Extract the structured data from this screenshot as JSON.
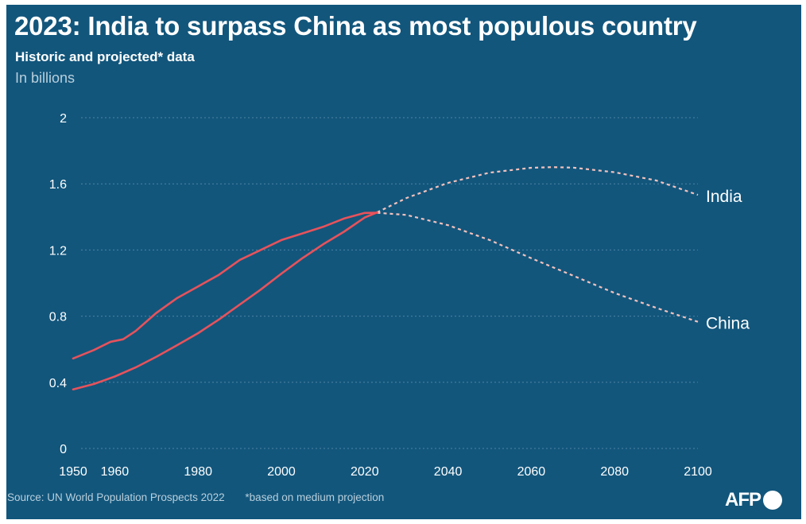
{
  "header": {
    "title": "2023: India to surpass China as most populous country",
    "subtitle": "Historic and projected* data",
    "unit": "In billions"
  },
  "footer": {
    "source": "Source: UN World Population Prospects 2022",
    "note": "*based on medium projection",
    "logo": "AFP"
  },
  "colors": {
    "background": "#12567c",
    "line": "#e8525b",
    "projection": "#f3c2bd",
    "grid": "#4e84a3"
  },
  "chart_data": {
    "type": "line",
    "title": "2023: India to surpass China as most populous country",
    "subtitle": "Historic and projected* data",
    "ylabel": "In billions",
    "xlim": [
      1950,
      2100
    ],
    "ylim": [
      0,
      2
    ],
    "x_ticks": [
      1950,
      1960,
      1980,
      2000,
      2020,
      2040,
      2060,
      2080,
      2100
    ],
    "y_ticks": [
      0,
      0.4,
      0.8,
      1.2,
      1.6,
      2
    ],
    "y_tick_labels": [
      "0",
      "0.4",
      "0.8",
      "1.2",
      "1.6",
      "2"
    ],
    "grid": "horizontal dotted",
    "legend": "end-of-line labels",
    "series": [
      {
        "name": "India",
        "historic": [
          [
            1950,
            0.357
          ],
          [
            1955,
            0.39
          ],
          [
            1960,
            0.435
          ],
          [
            1965,
            0.49
          ],
          [
            1970,
            0.555
          ],
          [
            1975,
            0.625
          ],
          [
            1980,
            0.697
          ],
          [
            1985,
            0.78
          ],
          [
            1990,
            0.87
          ],
          [
            1995,
            0.96
          ],
          [
            2000,
            1.057
          ],
          [
            2005,
            1.15
          ],
          [
            2010,
            1.234
          ],
          [
            2015,
            1.31
          ],
          [
            2020,
            1.396
          ],
          [
            2023,
            1.428
          ]
        ],
        "projected": [
          [
            2023,
            1.428
          ],
          [
            2030,
            1.514
          ],
          [
            2040,
            1.606
          ],
          [
            2050,
            1.668
          ],
          [
            2060,
            1.697
          ],
          [
            2065,
            1.701
          ],
          [
            2070,
            1.698
          ],
          [
            2080,
            1.67
          ],
          [
            2090,
            1.62
          ],
          [
            2100,
            1.533
          ]
        ]
      },
      {
        "name": "China",
        "historic": [
          [
            1950,
            0.544
          ],
          [
            1955,
            0.595
          ],
          [
            1959,
            0.645
          ],
          [
            1962,
            0.66
          ],
          [
            1965,
            0.71
          ],
          [
            1970,
            0.82
          ],
          [
            1975,
            0.91
          ],
          [
            1980,
            0.98
          ],
          [
            1985,
            1.05
          ],
          [
            1990,
            1.14
          ],
          [
            1995,
            1.2
          ],
          [
            2000,
            1.26
          ],
          [
            2005,
            1.3
          ],
          [
            2010,
            1.34
          ],
          [
            2015,
            1.39
          ],
          [
            2020,
            1.424
          ],
          [
            2023,
            1.425
          ]
        ],
        "projected": [
          [
            2023,
            1.425
          ],
          [
            2030,
            1.412
          ],
          [
            2040,
            1.35
          ],
          [
            2050,
            1.26
          ],
          [
            2060,
            1.15
          ],
          [
            2070,
            1.045
          ],
          [
            2080,
            0.94
          ],
          [
            2090,
            0.85
          ],
          [
            2100,
            0.766
          ]
        ]
      }
    ]
  }
}
